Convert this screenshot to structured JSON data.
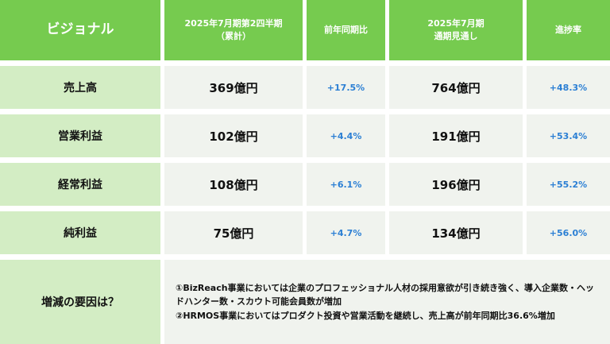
{
  "header": {
    "brand": "ビジョナル",
    "col_q2_line1": "2025年7月期第2四半期",
    "col_q2_line2": "（累計）",
    "col_yoy": "前年同期比",
    "col_forecast_line1": "2025年7月期",
    "col_forecast_line2": "通期見通し",
    "col_progress": "進捗率"
  },
  "rows": [
    {
      "label": "売上高",
      "q2": "369億円",
      "yoy": "+17.5%",
      "forecast": "764億円",
      "progress": "+48.3%"
    },
    {
      "label": "営業利益",
      "q2": "102億円",
      "yoy": "+4.4%",
      "forecast": "191億円",
      "progress": "+53.4%"
    },
    {
      "label": "経常利益",
      "q2": "108億円",
      "yoy": "+6.1%",
      "forecast": "196億円",
      "progress": "+55.2%"
    },
    {
      "label": "純利益",
      "q2": "75億円",
      "yoy": "+4.7%",
      "forecast": "134億円",
      "progress": "+56.0%"
    }
  ],
  "factors": {
    "label": "増減の要因は？",
    "line1": "①BizReach事業においては企業のプロフェッショナル人材の採用意欲が引き続き強く、導入企業数・ヘッドハンター数・スカウト可能会員数が増加",
    "line2": "②HRMOS事業においてはプロダクト投資や営業活動を継続し、売上高が前年同期比36.6%増加"
  },
  "colors": {
    "header": "#76cb4f",
    "label_bg": "#d3edc4",
    "cell_bg": "#f0f3ee",
    "percent_text": "#2b7fd4"
  }
}
